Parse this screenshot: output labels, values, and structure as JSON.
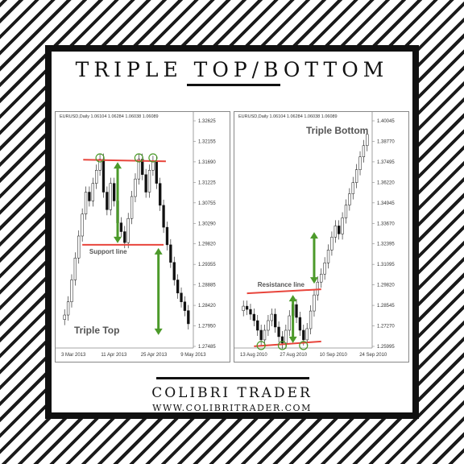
{
  "title": "TRIPLE TOP/BOTTOM",
  "brand": "COLIBRI TRADER",
  "url": "WWW.COLIBRITRADER.COM",
  "colors": {
    "resistance_line": "#e8453c",
    "arrow": "#4c9a2a",
    "circle": "#4c9a2a"
  },
  "chart_data": [
    {
      "type": "candlestick",
      "header": "EURUSD,Daily  1.06104 1.06284 1.06038 1.06089",
      "annotation": "Triple Top",
      "line_label": "Support line",
      "y_ticks": [
        "1.32625",
        "1.32155",
        "1.31690",
        "1.31225",
        "1.30755",
        "1.30290",
        "1.29820",
        "1.29355",
        "1.28885",
        "1.28420",
        "1.27950",
        "1.27485"
      ],
      "ylim": [
        1.27485,
        1.32625
      ],
      "x_ticks": [
        "3 Mar 2013",
        "11 Apr 2013",
        "25 Apr 2013",
        "9 May 2013"
      ],
      "resistance_level": 1.3172,
      "support_level": 1.298,
      "tops": [
        1.3178,
        1.3178,
        1.3178
      ],
      "closes": [
        1.282,
        1.285,
        1.29,
        1.295,
        1.3,
        1.305,
        1.31,
        1.308,
        1.312,
        1.315,
        1.3175,
        1.31,
        1.306,
        1.312,
        1.308,
        1.303,
        1.301,
        1.2985,
        1.304,
        1.309,
        1.313,
        1.3175,
        1.314,
        1.31,
        1.315,
        1.317,
        1.312,
        1.307,
        1.302,
        1.298,
        1.294,
        1.29,
        1.287,
        1.285,
        1.283,
        1.28
      ]
    },
    {
      "type": "candlestick",
      "header": "EURUSD,Daily  1.06104 1.06284 1.06038 1.06089",
      "annotation": "Triple Bottom",
      "line_label": "Resistance line",
      "y_ticks": [
        "1.40045",
        "1.38770",
        "1.37495",
        "1.36220",
        "1.34945",
        "1.33670",
        "1.32395",
        "1.31095",
        "1.29820",
        "1.28545",
        "1.27270",
        "1.25995"
      ],
      "ylim": [
        1.25995,
        1.40045
      ],
      "x_ticks": [
        "13 Aug 2010",
        "27 Aug 2010",
        "10 Sep 2010",
        "24 Sep 2010"
      ],
      "resistance_level": 1.294,
      "support_level": 1.261,
      "bottoms": [
        1.2605,
        1.2605,
        1.2605
      ],
      "closes": [
        1.285,
        1.283,
        1.28,
        1.276,
        1.27,
        1.264,
        1.27,
        1.276,
        1.28,
        1.272,
        1.266,
        1.262,
        1.27,
        1.279,
        1.286,
        1.278,
        1.27,
        1.264,
        1.271,
        1.282,
        1.292,
        1.3,
        1.305,
        1.312,
        1.32,
        1.328,
        1.335,
        1.33,
        1.34,
        1.348,
        1.355,
        1.362,
        1.37,
        1.378,
        1.385,
        1.392
      ]
    }
  ]
}
